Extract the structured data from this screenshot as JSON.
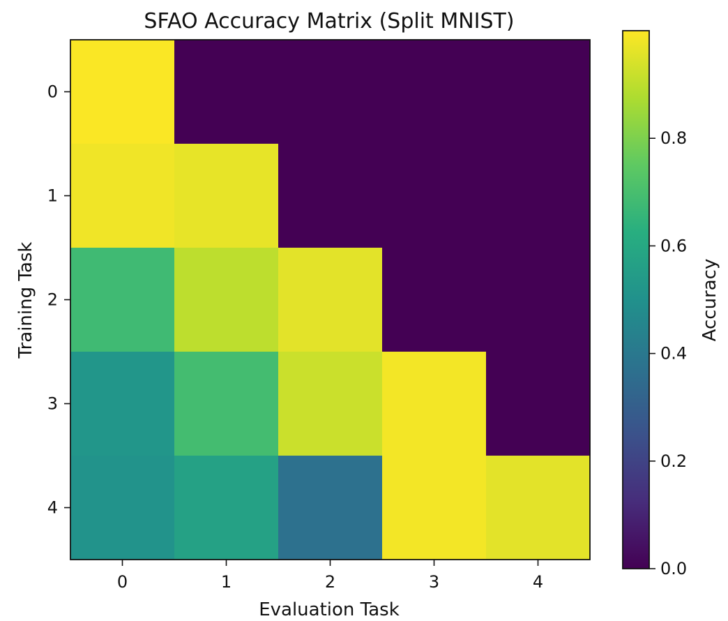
{
  "chart_data": {
    "type": "heatmap",
    "title": "SFAO Accuracy Matrix (Split MNIST)",
    "xlabel": "Evaluation Task",
    "ylabel": "Training Task",
    "x_categories": [
      "0",
      "1",
      "2",
      "3",
      "4"
    ],
    "y_categories": [
      "0",
      "1",
      "2",
      "3",
      "4"
    ],
    "values": [
      [
        0.995,
        0.0,
        0.0,
        0.0,
        0.0
      ],
      [
        0.98,
        0.965,
        0.0,
        0.0,
        0.0
      ],
      [
        0.68,
        0.9,
        0.96,
        0.0,
        0.0
      ],
      [
        0.52,
        0.69,
        0.92,
        0.985,
        0.0
      ],
      [
        0.51,
        0.57,
        0.37,
        0.985,
        0.96
      ]
    ],
    "colormap": "viridis",
    "colorbar": {
      "label": "Accuracy",
      "range": [
        0,
        1
      ],
      "ticks": [
        0.0,
        0.2,
        0.4,
        0.6,
        0.8
      ],
      "tick_labels": [
        "0.0",
        "0.2",
        "0.4",
        "0.6",
        "0.8"
      ]
    },
    "grid": false
  }
}
